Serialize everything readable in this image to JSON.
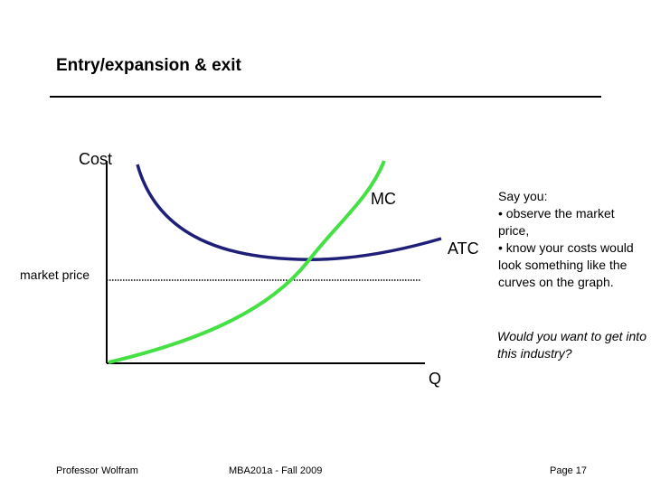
{
  "title": "Entry/expansion & exit",
  "graph": {
    "y_label": "Cost",
    "x_label": "Q",
    "mc_label": "MC",
    "atc_label": "ATC",
    "market_price_label": "market price",
    "colors": {
      "mc": "#44e044",
      "atc": "#1f1f7a",
      "axes": "#000000",
      "market_price_line": "#000000"
    }
  },
  "side_text": {
    "intro": "Say you:",
    "bullets": [
      "• observe the market price,",
      "• know your costs would look something like the curves on the graph."
    ],
    "question": "Would you want to get into this industry?"
  },
  "footer": {
    "left": "Professor Wolfram",
    "center": "MBA201a - Fall 2009",
    "right": "Page 17"
  }
}
